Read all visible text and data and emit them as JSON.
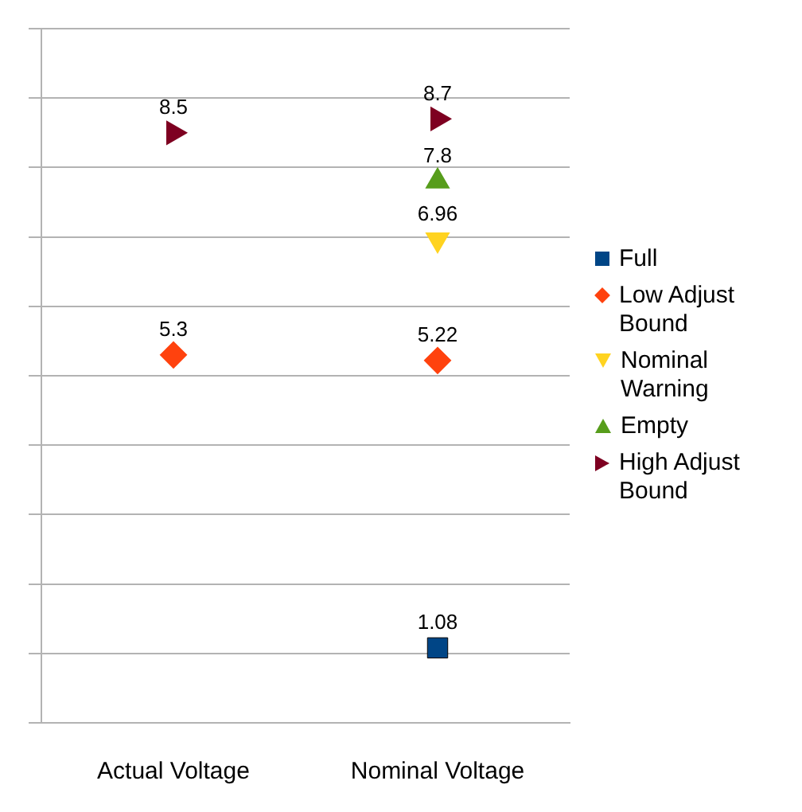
{
  "chart_data": {
    "type": "scatter",
    "categories": [
      "Actual Voltage",
      "Nominal Voltage"
    ],
    "series": [
      {
        "name": "Full",
        "color": "#004586",
        "marker": "square",
        "values": [
          null,
          1.08
        ]
      },
      {
        "name": "Low Adjust Bound",
        "color": "#ff420e",
        "marker": "diamond",
        "values": [
          5.3,
          5.22
        ]
      },
      {
        "name": "Nominal Warning",
        "color": "#ffd320",
        "marker": "triangle-down",
        "values": [
          null,
          6.96
        ]
      },
      {
        "name": "Empty",
        "color": "#579d1c",
        "marker": "triangle",
        "values": [
          null,
          7.8
        ]
      },
      {
        "name": "High Adjust Bound",
        "color": "#7e0021",
        "marker": "triangle-right",
        "values": [
          8.5,
          8.7
        ]
      }
    ],
    "ylim": [
      0,
      10
    ],
    "yticks": [
      {
        "value": 0,
        "label": null
      },
      {
        "value": 1,
        "label": null
      },
      {
        "value": 2,
        "label": null
      },
      {
        "value": 3,
        "label": null
      },
      {
        "value": 4,
        "label": null
      },
      {
        "value": 5,
        "label": null
      },
      {
        "value": 6,
        "label": null
      },
      {
        "value": 7,
        "label": null
      },
      {
        "value": 8,
        "label": null
      },
      {
        "value": 9,
        "label": null
      },
      {
        "value": 10,
        "label": null
      }
    ],
    "tick_labels": "x",
    "grid": "y",
    "legend": "right",
    "data_labels": true
  }
}
